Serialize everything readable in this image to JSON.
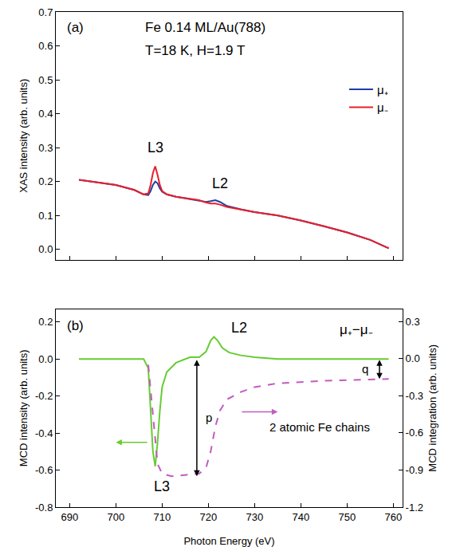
{
  "chart_data": [
    {
      "type": "line",
      "label": "(a)",
      "annotations": [
        "Fe 0.14 ML/Au(788)",
        "T=18 K, H=1.9 T",
        "L3",
        "L2"
      ],
      "y_label": "XAS intensity (arb. units)",
      "x": [
        692,
        695,
        700,
        704,
        706,
        707,
        707.5,
        708,
        708.5,
        709,
        709.5,
        710,
        711,
        713,
        716,
        718,
        719.5,
        720.5,
        721.5,
        722.5,
        724,
        727,
        730,
        735,
        740,
        745,
        750,
        755,
        759
      ],
      "series": [
        {
          "name": "μ₊",
          "color": "#1f3fa6",
          "values": [
            0.205,
            0.2,
            0.19,
            0.175,
            0.162,
            0.16,
            0.172,
            0.19,
            0.2,
            0.195,
            0.18,
            0.17,
            0.162,
            0.155,
            0.148,
            0.145,
            0.14,
            0.142,
            0.145,
            0.14,
            0.128,
            0.118,
            0.11,
            0.1,
            0.085,
            0.068,
            0.05,
            0.028,
            0.003
          ]
        },
        {
          "name": "μ₋",
          "color": "#e8202a",
          "values": [
            0.205,
            0.2,
            0.19,
            0.175,
            0.162,
            0.165,
            0.19,
            0.225,
            0.245,
            0.22,
            0.19,
            0.172,
            0.162,
            0.155,
            0.148,
            0.145,
            0.138,
            0.135,
            0.135,
            0.132,
            0.125,
            0.117,
            0.11,
            0.1,
            0.085,
            0.068,
            0.05,
            0.028,
            0.003
          ]
        }
      ],
      "xlim": [
        687,
        762
      ],
      "xticks": [
        690,
        700,
        710,
        720,
        730,
        740,
        750,
        760
      ],
      "ylim": [
        -0.03,
        0.7
      ],
      "yticks": [
        {
          "value": 0,
          "label": "0.0"
        },
        0.1,
        0.2,
        0.3,
        0.4,
        0.5,
        0.6,
        0.7
      ],
      "legend": "upper right",
      "tick_labels": "y",
      "grid": false
    },
    {
      "type": "line",
      "label": "(b)",
      "annotations": [
        "L3",
        "L2",
        "μ₊−μ₋",
        "p",
        "q",
        "2 atomic Fe chains"
      ],
      "x_label": "Photon Energy (eV)",
      "y_label": "MCD intensity (arb. units)",
      "y2_label": "MCD integration (arb. units)",
      "series": [
        {
          "name": "μ₊−μ₋",
          "color": "#66cc33",
          "x": [
            692,
            700,
            706,
            707,
            707.5,
            708,
            708.5,
            709,
            709.5,
            710,
            711,
            713,
            716,
            718,
            719.5,
            720.5,
            721.2,
            722,
            723,
            724.5,
            727,
            730,
            735,
            740,
            750,
            759
          ],
          "values": [
            0,
            0,
            0,
            -0.05,
            -0.25,
            -0.5,
            -0.58,
            -0.45,
            -0.28,
            -0.15,
            -0.07,
            -0.02,
            0.01,
            0.01,
            0.04,
            0.1,
            0.12,
            0.1,
            0.06,
            0.035,
            0.02,
            0.01,
            0,
            0,
            0,
            0
          ]
        },
        {
          "name": "MCD integration",
          "color": "#c05cc0",
          "axis": "y2",
          "line_style": "dashed",
          "x": [
            707,
            708,
            709,
            710,
            712,
            715,
            718,
            719.5,
            720.5,
            721.5,
            722.5,
            724,
            727,
            730,
            735,
            745,
            755,
            759
          ],
          "values": [
            -0.05,
            -0.45,
            -0.85,
            -0.93,
            -0.95,
            -0.94,
            -0.93,
            -0.88,
            -0.75,
            -0.55,
            -0.42,
            -0.33,
            -0.27,
            -0.23,
            -0.2,
            -0.18,
            -0.17,
            -0.165
          ]
        }
      ],
      "xlim": [
        687,
        762
      ],
      "xticks": [
        690,
        700,
        710,
        720,
        730,
        740,
        750,
        760
      ],
      "ylim": [
        -0.8,
        0.27
      ],
      "yticks": [
        -0.8,
        -0.6,
        -0.4,
        -0.2,
        {
          "value": 0,
          "label": "0.0"
        },
        0.2
      ],
      "y2lim": [
        -1.2,
        0.4
      ],
      "y2ticks": [
        -1.2,
        -0.9,
        -0.6,
        -0.3,
        {
          "value": 0,
          "label": "0.0"
        },
        0.3
      ],
      "legend": "none",
      "grid": false
    }
  ]
}
